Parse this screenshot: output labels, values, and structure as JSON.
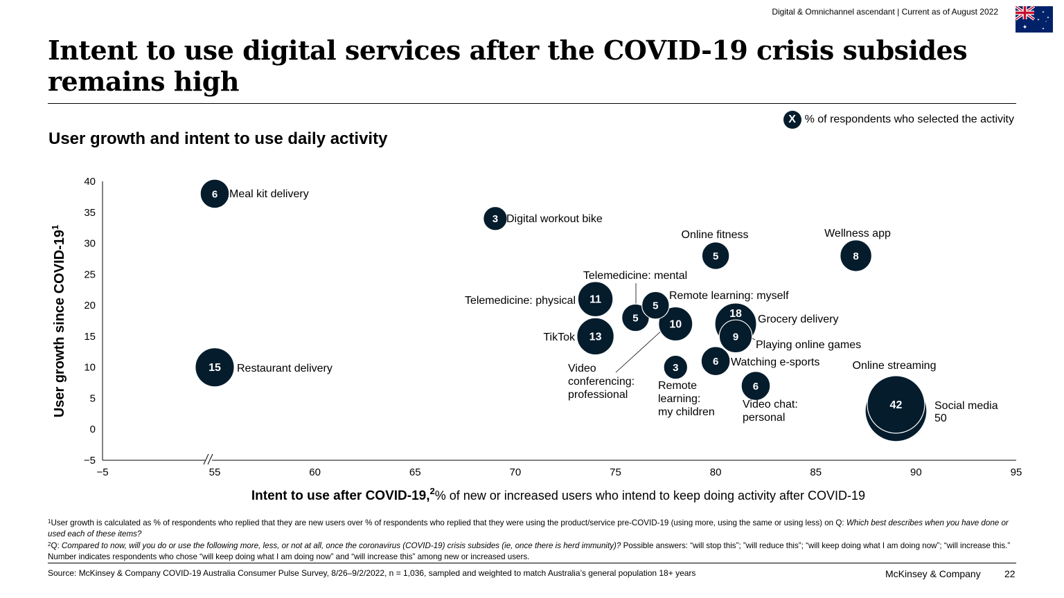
{
  "header": {
    "tag": "Digital & Omnichannel ascendant | Current as of August 2022",
    "title": "Intent to use digital services after the COVID-19 crisis subsides remains high",
    "flag": "australia-flag-icon"
  },
  "legend": {
    "marker": "X",
    "text": "% of respondents who selected the activity"
  },
  "subtitle": "User growth and intent to use daily activity",
  "chart_data": {
    "type": "bubble",
    "title": "User growth and intent to use daily activity",
    "xlabel_bold": "Intent to use after COVID-19,",
    "xlabel_sup": "2",
    "xlabel_rest": "% of new or increased users who intend to keep doing activity after COVID-19",
    "ylabel": "User growth since COVID-19",
    "ylabel_sup": "1",
    "x_ticks": [
      "−5",
      "55",
      "60",
      "65",
      "70",
      "75",
      "80",
      "85",
      "90",
      "95"
    ],
    "y_ticks": [
      "−5",
      "0",
      "5",
      "10",
      "15",
      "20",
      "25",
      "30",
      "35",
      "40"
    ],
    "xlim": [
      -5,
      95
    ],
    "x_axis_break": "between -5 and 55",
    "ylim": [
      -5,
      40
    ],
    "grid": false,
    "series": [
      {
        "name": "Meal kit delivery",
        "x": 55,
        "y": 38,
        "size": 6
      },
      {
        "name": "Restaurant delivery",
        "x": 55,
        "y": 10,
        "size": 15
      },
      {
        "name": "Digital workout bike",
        "x": 69,
        "y": 34,
        "size": 3
      },
      {
        "name": "Telemedicine: physical",
        "x": 74,
        "y": 21,
        "size": 11
      },
      {
        "name": "TikTok",
        "x": 74,
        "y": 15,
        "size": 13
      },
      {
        "name": "Telemedicine: mental",
        "x": 76,
        "y": 18,
        "size": 5
      },
      {
        "name": "Remote learning: myself",
        "x": 77,
        "y": 20,
        "size": 5
      },
      {
        "name": "Video conferencing: professional",
        "x": 78,
        "y": 17,
        "size": 10
      },
      {
        "name": "Remote learning: my children",
        "x": 78,
        "y": 10,
        "size": 3
      },
      {
        "name": "Online fitness",
        "x": 80,
        "y": 28,
        "size": 5
      },
      {
        "name": "Watching e-sports",
        "x": 80,
        "y": 11,
        "size": 6
      },
      {
        "name": "Grocery delivery",
        "x": 81,
        "y": 17,
        "size": 18
      },
      {
        "name": "Playing online games",
        "x": 81,
        "y": 15,
        "size": 9
      },
      {
        "name": "Video chat: personal",
        "x": 82,
        "y": 7,
        "size": 6
      },
      {
        "name": "Wellness app",
        "x": 87,
        "y": 28,
        "size": 8
      },
      {
        "name": "Social media",
        "x": 89,
        "y": 3,
        "size": 50
      },
      {
        "name": "Online streaming",
        "x": 89,
        "y": 4,
        "size": 42
      }
    ],
    "labels": {
      "meal_kit": "Meal kit delivery",
      "restaurant": "Restaurant delivery",
      "workout_bike": "Digital workout bike",
      "tele_physical": "Telemedicine: physical",
      "tiktok": "TikTok",
      "tele_mental": "Telemedicine: mental",
      "remote_myself": "Remote learning: myself",
      "video_conf": [
        "Video",
        "conferencing:",
        "professional"
      ],
      "remote_children": [
        "Remote",
        "learning:",
        "my children"
      ],
      "online_fitness": "Online fitness",
      "esports": "Watching e-sports",
      "grocery": "Grocery delivery",
      "online_games": "Playing online games",
      "video_chat": [
        "Video chat:",
        "personal"
      ],
      "wellness": "Wellness app",
      "streaming": "Online streaming",
      "social_media": "Social media",
      "social_media_value": "50"
    }
  },
  "footnotes": {
    "fn1_mark": "1",
    "fn1_text": "User growth is calculated as % of respondents who replied that they are new users over % of respondents who replied that they were using the product/service pre-COVID-19 (using more, using the same or using less) on Q: ",
    "fn1_question": "Which best describes when you have done or used each of these items?",
    "fn2_mark": "2",
    "fn2_prefix": "Q: ",
    "fn2_question": "Compared to now, will you do or use the following more, less, or not at all, once the coronavirus (COVID-19) crisis subsides (ie, once there is herd immunity)?",
    "fn2_text": " Possible answers: “will stop this”; ”will reduce this”; “will keep doing what I am doing now”; “will increase this.” Number indicates respondents who chose “will keep doing what I am doing now” and “will increase this” among new or increased users."
  },
  "footer": {
    "source": "Source: McKinsey & Company COVID-19 Australia Consumer Pulse Survey, 8/26–9/2/2022, n = 1,036, sampled and weighted to match Australia’s general population 18+ years",
    "brand": "McKinsey & Company",
    "page": "22"
  },
  "colors": {
    "bubble": "#051c2c",
    "bubble_text": "#ffffff",
    "flag_blue": "#012169",
    "flag_red": "#c8102e"
  }
}
